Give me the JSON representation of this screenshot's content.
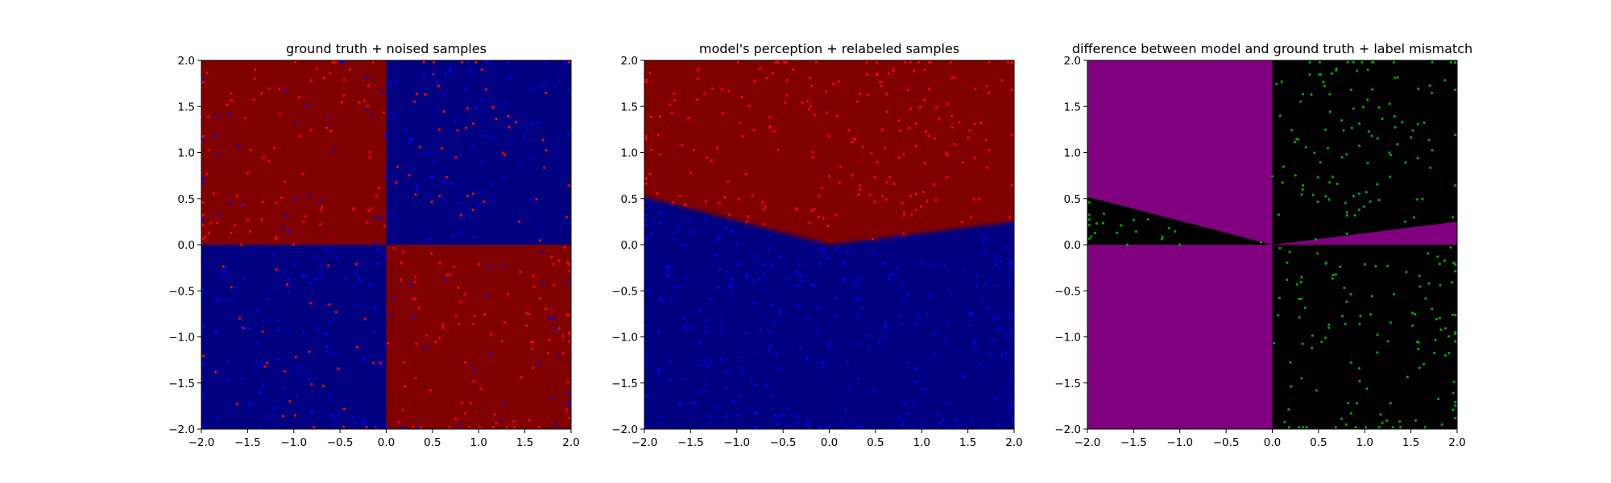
{
  "chart_data": [
    {
      "type": "scatter",
      "title": "ground truth + noised samples",
      "xlim": [
        -2.0,
        2.0
      ],
      "ylim": [
        -2.0,
        2.0
      ],
      "xticks": [
        "−2.0",
        "−1.5",
        "−1.0",
        "−0.5",
        "0.0",
        "0.5",
        "1.0",
        "1.5",
        "2.0"
      ],
      "yticks": [
        "−2.0",
        "−1.5",
        "−1.0",
        "−0.5",
        "0.0",
        "0.5",
        "1.0",
        "1.5",
        "2.0"
      ],
      "grid": false,
      "background": {
        "kind": "xor-quadrants",
        "positive_color": "#800000",
        "negative_color": "#000080",
        "rule": "red where x*y<0, blue where x*y>0"
      },
      "series": [
        {
          "color": "#ff0000",
          "marker_count": 500
        },
        {
          "color": "#0000ff",
          "marker_count": 500
        }
      ]
    },
    {
      "type": "scatter",
      "title": "model's perception + relabeled samples",
      "xlim": [
        -2.0,
        2.0
      ],
      "ylim": [
        -2.0,
        2.0
      ],
      "xticks": [
        "−2.0",
        "−1.5",
        "−1.0",
        "−0.5",
        "0.0",
        "0.5",
        "1.0",
        "1.5",
        "2.0"
      ],
      "yticks": [
        "−2.0",
        "−1.5",
        "−1.0",
        "−0.5",
        "0.0",
        "0.5",
        "1.0",
        "1.5",
        "2.0"
      ],
      "grid": false,
      "background": {
        "kind": "learned-boundary",
        "upper_color": "#800000",
        "lower_color": "#000080",
        "boundary": [
          [
            -2.0,
            0.52
          ],
          [
            0.0,
            0.0
          ],
          [
            2.0,
            0.25
          ]
        ]
      },
      "series": [
        {
          "color": "#ff0000",
          "marker_count": 500
        },
        {
          "color": "#0000ff",
          "marker_count": 500
        }
      ]
    },
    {
      "type": "scatter",
      "title": "difference between model and ground truth + label mismatch",
      "xlim": [
        -2.0,
        2.0
      ],
      "ylim": [
        -2.0,
        2.0
      ],
      "xticks": [
        "−2.0",
        "−1.5",
        "−1.0",
        "−0.5",
        "0.0",
        "0.5",
        "1.0",
        "1.5",
        "2.0"
      ],
      "yticks": [
        "−2.0",
        "−1.5",
        "−1.0",
        "−0.5",
        "0.0",
        "0.5",
        "1.0",
        "1.5",
        "2.0"
      ],
      "grid": false,
      "background": {
        "kind": "mismatch-map",
        "mismatch_color": "#800080",
        "match_color": "#000000"
      },
      "series": [
        {
          "color": "#00a000",
          "marker_count": 480
        }
      ]
    }
  ]
}
